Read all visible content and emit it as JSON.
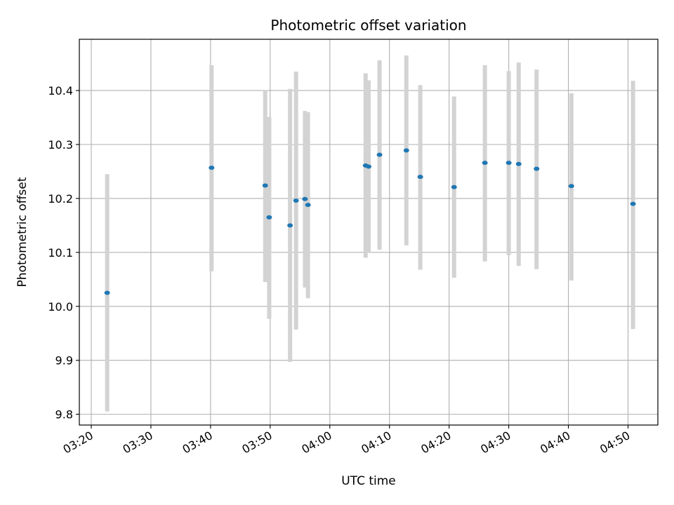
{
  "chart_data": {
    "type": "scatter",
    "title": "Photometric offset variation",
    "xlabel": "UTC time",
    "ylabel": "Photometric offset",
    "x_ticks": [
      "03:20",
      "03:30",
      "03:40",
      "03:50",
      "04:00",
      "04:10",
      "04:20",
      "04:30",
      "04:40",
      "04:50"
    ],
    "y_ticks": [
      "9.8",
      "9.9",
      "10.0",
      "10.1",
      "10.2",
      "10.3",
      "10.4"
    ],
    "xlim": [
      "03:18",
      "04:55"
    ],
    "ylim": [
      9.78,
      10.495
    ],
    "grid": true,
    "points": [
      {
        "x": "03:22:40",
        "y": 10.025,
        "ylo": 9.805,
        "yhi": 10.245
      },
      {
        "x": "03:40:10",
        "y": 10.257,
        "ylo": 10.065,
        "yhi": 10.447
      },
      {
        "x": "03:49:10",
        "y": 10.224,
        "ylo": 10.045,
        "yhi": 10.401
      },
      {
        "x": "03:49:50",
        "y": 10.165,
        "ylo": 9.977,
        "yhi": 10.351
      },
      {
        "x": "03:53:20",
        "y": 10.15,
        "ylo": 9.897,
        "yhi": 10.403
      },
      {
        "x": "03:54:20",
        "y": 10.196,
        "ylo": 9.957,
        "yhi": 10.435
      },
      {
        "x": "03:55:50",
        "y": 10.199,
        "ylo": 10.035,
        "yhi": 10.362
      },
      {
        "x": "03:56:20",
        "y": 10.188,
        "ylo": 10.015,
        "yhi": 10.36
      },
      {
        "x": "04:06:00",
        "y": 10.261,
        "ylo": 10.09,
        "yhi": 10.432
      },
      {
        "x": "04:06:30",
        "y": 10.259,
        "ylo": 10.1,
        "yhi": 10.419
      },
      {
        "x": "04:08:20",
        "y": 10.281,
        "ylo": 10.105,
        "yhi": 10.456
      },
      {
        "x": "04:12:50",
        "y": 10.289,
        "ylo": 10.113,
        "yhi": 10.465
      },
      {
        "x": "04:15:10",
        "y": 10.24,
        "ylo": 10.068,
        "yhi": 10.41
      },
      {
        "x": "04:20:50",
        "y": 10.221,
        "ylo": 10.053,
        "yhi": 10.389
      },
      {
        "x": "04:26:00",
        "y": 10.266,
        "ylo": 10.083,
        "yhi": 10.447
      },
      {
        "x": "04:30:00",
        "y": 10.266,
        "ylo": 10.095,
        "yhi": 10.436
      },
      {
        "x": "04:31:40",
        "y": 10.264,
        "ylo": 10.075,
        "yhi": 10.452
      },
      {
        "x": "04:34:40",
        "y": 10.255,
        "ylo": 10.069,
        "yhi": 10.439
      },
      {
        "x": "04:40:30",
        "y": 10.223,
        "ylo": 10.048,
        "yhi": 10.395
      },
      {
        "x": "04:50:50",
        "y": 10.19,
        "ylo": 9.958,
        "yhi": 10.418
      }
    ],
    "colors": {
      "point": "#1f77b4",
      "errorbar": "#d3d3d3",
      "grid": "#b0b0b0",
      "axes": "#000000"
    }
  }
}
